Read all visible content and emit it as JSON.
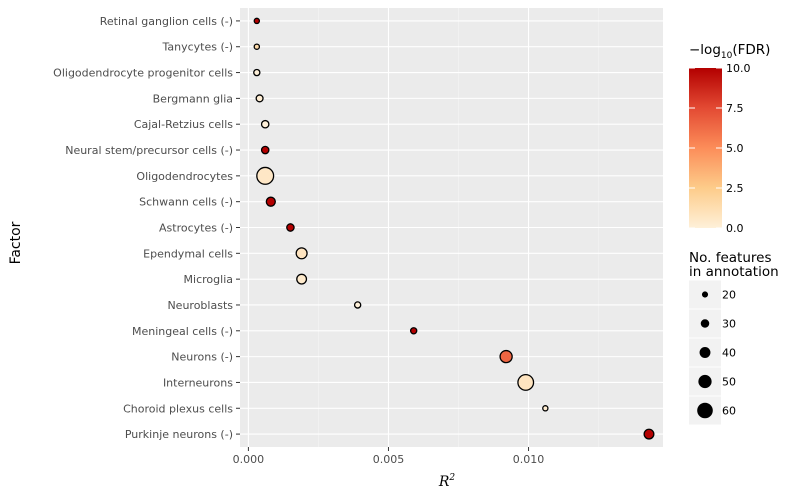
{
  "chart_data": {
    "type": "scatter",
    "title": "",
    "xlabel": "R",
    "xlabel_superscript": "2",
    "ylabel": "Factor",
    "xlim": [
      -0.0003,
      0.0148
    ],
    "x_ticks": [
      0.0,
      0.005,
      0.01
    ],
    "x_tick_labels": [
      "0.000",
      "0.005",
      "0.010"
    ],
    "grid": true,
    "points": [
      {
        "factor": "Retinal ganglion cells (-)",
        "r2": 0.0003,
        "neg_log10_fdr": 10.0,
        "n_features": 16
      },
      {
        "factor": "Tanycytes (-)",
        "r2": 0.0003,
        "neg_log10_fdr": 1.5,
        "n_features": 16
      },
      {
        "factor": "Oligodendrocyte progenitor cells",
        "r2": 0.0003,
        "neg_log10_fdr": 0.0,
        "n_features": 20
      },
      {
        "factor": "Bergmann glia",
        "r2": 0.0004,
        "neg_log10_fdr": 0.2,
        "n_features": 23
      },
      {
        "factor": "Cajal-Retzius cells",
        "r2": 0.0006,
        "neg_log10_fdr": 0.0,
        "n_features": 25
      },
      {
        "factor": "Neural stem/precursor cells (-)",
        "r2": 0.0006,
        "neg_log10_fdr": 10.0,
        "n_features": 25
      },
      {
        "factor": "Oligodendrocytes",
        "r2": 0.0006,
        "neg_log10_fdr": 0.6,
        "n_features": 65
      },
      {
        "factor": "Schwann cells (-)",
        "r2": 0.0008,
        "neg_log10_fdr": 10.0,
        "n_features": 32
      },
      {
        "factor": "Astrocytes (-)",
        "r2": 0.0015,
        "neg_log10_fdr": 10.0,
        "n_features": 25
      },
      {
        "factor": "Ependymal cells",
        "r2": 0.0019,
        "neg_log10_fdr": 0.8,
        "n_features": 40
      },
      {
        "factor": "Microglia",
        "r2": 0.0019,
        "neg_log10_fdr": 0.4,
        "n_features": 35
      },
      {
        "factor": "Neuroblasts",
        "r2": 0.0039,
        "neg_log10_fdr": 0.0,
        "n_features": 20
      },
      {
        "factor": "Meningeal cells (-)",
        "r2": 0.0059,
        "neg_log10_fdr": 10.0,
        "n_features": 20
      },
      {
        "factor": "Neurons (-)",
        "r2": 0.0092,
        "neg_log10_fdr": 6.5,
        "n_features": 45
      },
      {
        "factor": "Interneurons",
        "r2": 0.0099,
        "neg_log10_fdr": 0.8,
        "n_features": 60
      },
      {
        "factor": "Choroid plexus cells",
        "r2": 0.0106,
        "neg_log10_fdr": 0.3,
        "n_features": 16
      },
      {
        "factor": "Purkinje neurons (-)",
        "r2": 0.0143,
        "neg_log10_fdr": 10.0,
        "n_features": 35
      }
    ],
    "color_legend": {
      "title_prefix": "−log",
      "title_sub": "10",
      "title_suffix": "(FDR)",
      "ticks": [
        10.0,
        7.5,
        5.0,
        2.5,
        0.0
      ],
      "tick_labels": [
        "10.0",
        "7.5",
        "5.0",
        "2.5",
        "0.0"
      ],
      "range": [
        0.0,
        10.0
      ],
      "colors": [
        "#fef0d9",
        "#fdcc8a",
        "#fc8d59",
        "#e34a33",
        "#b30000"
      ]
    },
    "size_legend": {
      "title_line1": "No. features",
      "title_line2": "in annotation",
      "values": [
        20,
        30,
        40,
        50,
        60
      ],
      "labels": [
        "20",
        "30",
        "40",
        "50",
        "60"
      ]
    },
    "colors": {
      "panel_background": "#ebebeb",
      "grid_major": "#ffffff",
      "point_stroke": "#000000"
    }
  }
}
